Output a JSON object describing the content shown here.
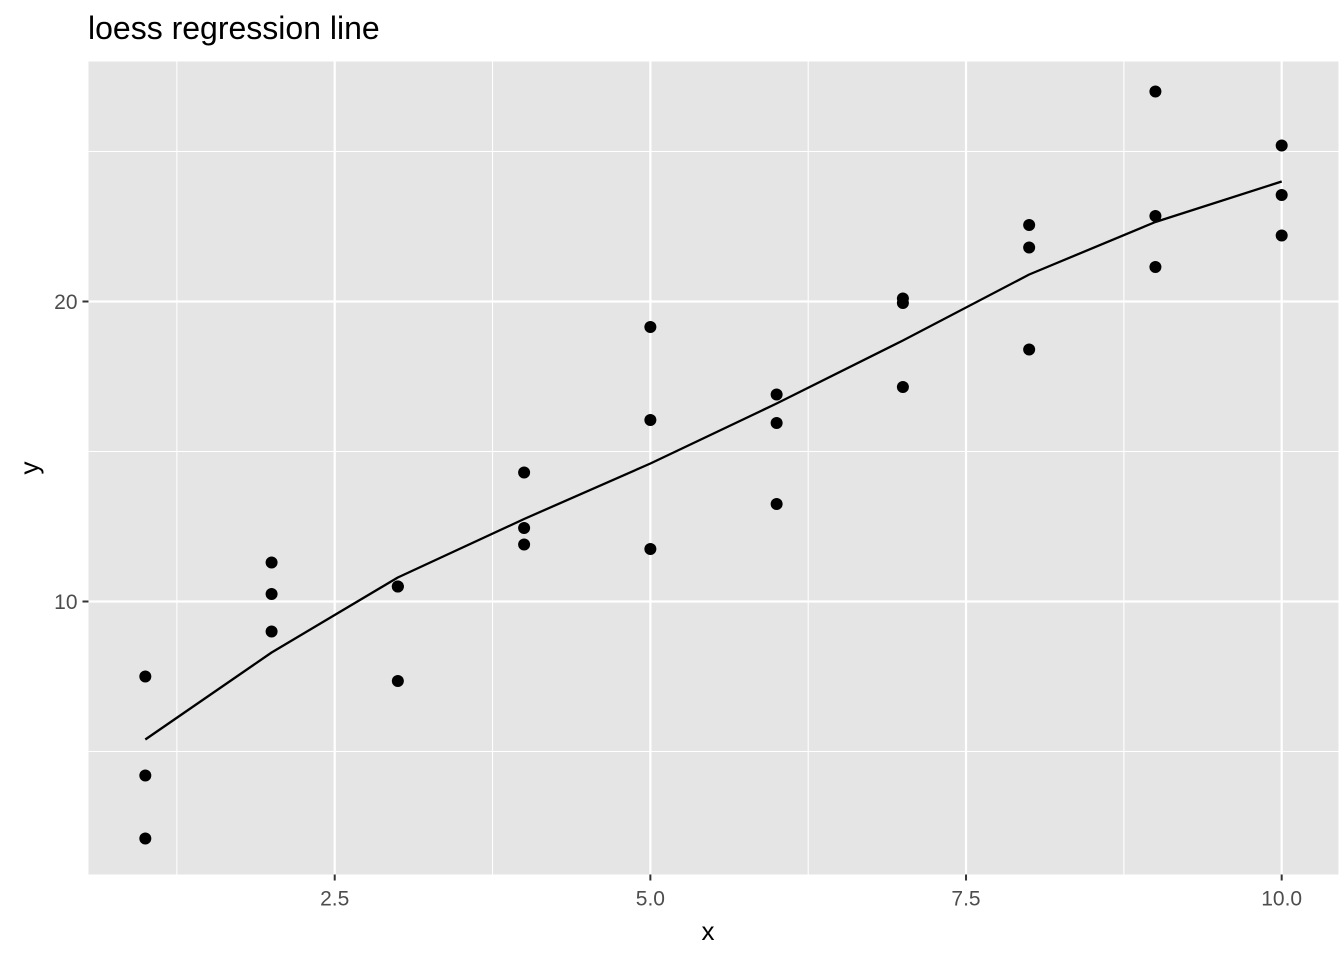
{
  "chart_data": {
    "type": "scatter",
    "title": "loess regression line",
    "xlabel": "x",
    "ylabel": "y",
    "xlim": [
      0.55,
      10.45
    ],
    "ylim": [
      0.9,
      28.0
    ],
    "x_ticks": [
      2.5,
      5.0,
      7.5,
      10.0
    ],
    "x_tick_labels": [
      "2.5",
      "5.0",
      "7.5",
      "10.0"
    ],
    "y_ticks": [
      10,
      20
    ],
    "y_tick_labels": [
      "10",
      "20"
    ],
    "grid": true,
    "legend": "none",
    "panel_background": "#e5e5e5",
    "grid_color": "#ffffff",
    "point_color": "#000000",
    "line_color": "#000000",
    "points": [
      {
        "x": 1,
        "y": 7.5
      },
      {
        "x": 1,
        "y": 4.2
      },
      {
        "x": 1,
        "y": 2.1
      },
      {
        "x": 2,
        "y": 11.3
      },
      {
        "x": 2,
        "y": 10.25
      },
      {
        "x": 2,
        "y": 9.0
      },
      {
        "x": 3,
        "y": 10.5
      },
      {
        "x": 3,
        "y": 10.5
      },
      {
        "x": 3,
        "y": 7.35
      },
      {
        "x": 4,
        "y": 14.3
      },
      {
        "x": 4,
        "y": 12.45
      },
      {
        "x": 4,
        "y": 11.9
      },
      {
        "x": 5,
        "y": 19.15
      },
      {
        "x": 5,
        "y": 16.05
      },
      {
        "x": 5,
        "y": 11.75
      },
      {
        "x": 6,
        "y": 16.9
      },
      {
        "x": 6,
        "y": 15.95
      },
      {
        "x": 6,
        "y": 13.25
      },
      {
        "x": 7,
        "y": 20.1
      },
      {
        "x": 7,
        "y": 19.95
      },
      {
        "x": 7,
        "y": 17.15
      },
      {
        "x": 8,
        "y": 22.55
      },
      {
        "x": 8,
        "y": 21.8
      },
      {
        "x": 8,
        "y": 18.4
      },
      {
        "x": 9,
        "y": 27.0
      },
      {
        "x": 9,
        "y": 22.85
      },
      {
        "x": 9,
        "y": 21.15
      },
      {
        "x": 10,
        "y": 25.2
      },
      {
        "x": 10,
        "y": 23.55
      },
      {
        "x": 10,
        "y": 22.2
      }
    ],
    "loess_line": [
      {
        "x": 1,
        "y": 5.4
      },
      {
        "x": 2,
        "y": 8.3
      },
      {
        "x": 3,
        "y": 10.8
      },
      {
        "x": 4,
        "y": 12.75
      },
      {
        "x": 5,
        "y": 14.6
      },
      {
        "x": 6,
        "y": 16.6
      },
      {
        "x": 7,
        "y": 18.7
      },
      {
        "x": 8,
        "y": 20.9
      },
      {
        "x": 9,
        "y": 22.65
      },
      {
        "x": 10,
        "y": 24.0
      }
    ]
  }
}
